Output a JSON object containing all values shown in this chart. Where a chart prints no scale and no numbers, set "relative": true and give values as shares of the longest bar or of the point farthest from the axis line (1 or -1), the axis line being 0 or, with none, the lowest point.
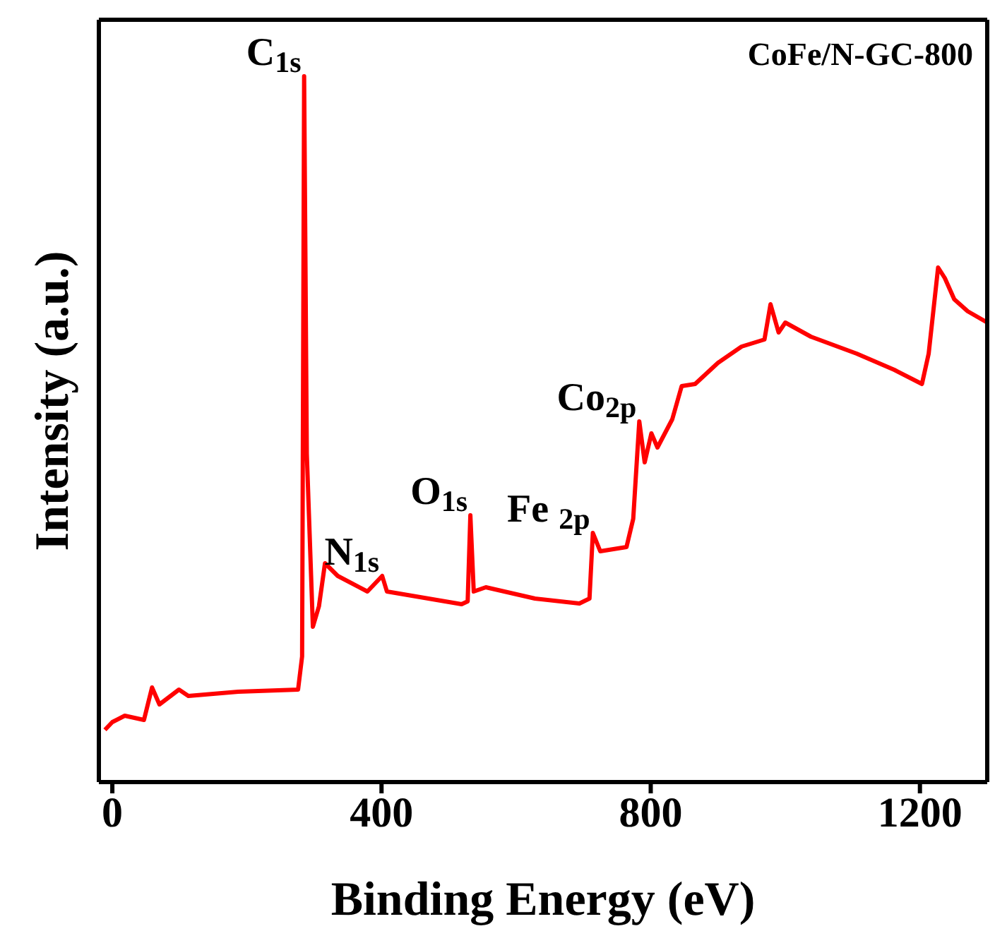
{
  "chart_data": {
    "type": "line",
    "title": "CoFe/N-GC-800",
    "xlabel": "Binding Energy (eV)",
    "ylabel": "Intensity (a.u.)",
    "relative": true,
    "xlim": [
      -20,
      1300
    ],
    "xticks": [
      0,
      400,
      800,
      1200
    ],
    "marker": "none",
    "line_style": "solid",
    "annotations": [
      {
        "text": "C$_{1s}$",
        "x": 285,
        "y": 1.0
      },
      {
        "text": "N$_{1s}$",
        "x": 401,
        "y": 0.292
      },
      {
        "text": "O$_{1s}$",
        "x": 532,
        "y": 0.378
      },
      {
        "text": "Fe $_{2p}$",
        "x": 714,
        "y": 0.353
      },
      {
        "text": "Co$_{2p}$",
        "x": 783,
        "y": 0.511
      }
    ],
    "series": [
      {
        "color": "#ff0000",
        "x": [
          -11,
          0,
          18.5,
          47,
          59,
          70,
          99,
          113,
          187,
          276,
          282,
          285,
          289,
          298,
          307,
          316,
          335,
          379,
          401,
          408,
          445,
          519,
          528,
          532,
          537,
          555,
          628,
          694,
          709,
          714,
          725,
          764,
          774,
          783,
          791,
          801,
          810,
          832,
          846,
          866,
          900,
          935,
          969,
          978,
          990,
          1000,
          1038,
          1106,
          1162,
          1203,
          1213,
          1227,
          1237,
          1251,
          1271,
          1300
        ],
        "values": [
          0.074,
          0.085,
          0.094,
          0.088,
          0.134,
          0.11,
          0.131,
          0.122,
          0.128,
          0.131,
          0.178,
          1.0,
          0.465,
          0.22,
          0.249,
          0.31,
          0.292,
          0.27,
          0.292,
          0.27,
          0.264,
          0.252,
          0.256,
          0.378,
          0.27,
          0.276,
          0.26,
          0.253,
          0.26,
          0.353,
          0.327,
          0.333,
          0.373,
          0.511,
          0.453,
          0.494,
          0.474,
          0.514,
          0.561,
          0.564,
          0.594,
          0.617,
          0.627,
          0.677,
          0.637,
          0.651,
          0.631,
          0.607,
          0.584,
          0.564,
          0.607,
          0.729,
          0.714,
          0.684,
          0.667,
          0.651
        ]
      }
    ]
  }
}
